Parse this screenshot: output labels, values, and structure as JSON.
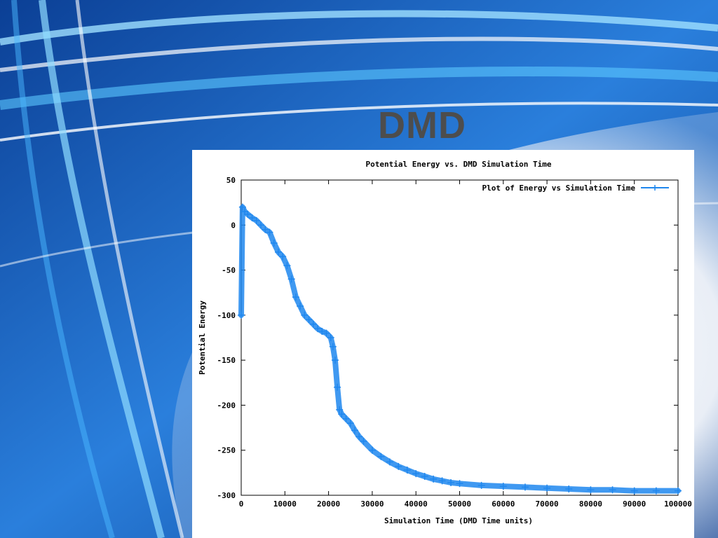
{
  "slide": {
    "title": "DMD"
  },
  "colors": {
    "series": "#1f87ee",
    "title_text": "#4d4d4d"
  },
  "chart_data": {
    "type": "scatter",
    "title": "Potential Energy vs. DMD Simulation Time",
    "xlabel": "Simulation Time (DMD Time units)",
    "ylabel": "Potential Energy",
    "xlim": [
      0,
      100000
    ],
    "ylim": [
      -300,
      50
    ],
    "xticks": [
      "0",
      "10000",
      "20000",
      "30000",
      "40000",
      "50000",
      "60000",
      "70000",
      "80000",
      "90000",
      "100000"
    ],
    "yticks": [
      "50",
      "0",
      "-50",
      "-100",
      "-150",
      "-200",
      "-250",
      "-300"
    ],
    "legend": {
      "position": "top-right"
    },
    "grid": false,
    "series": [
      {
        "name": "Plot of Energy vs Simulation Time",
        "style": "line-plus-markers",
        "x": [
          0,
          300,
          800,
          1500,
          2500,
          3500,
          4500,
          5500,
          6500,
          7500,
          8500,
          9500,
          10500,
          11500,
          12500,
          13500,
          14500,
          15500,
          16500,
          17500,
          18500,
          19500,
          20500,
          21000,
          21500,
          22000,
          22500,
          23000,
          24000,
          25000,
          26000,
          27000,
          28000,
          30000,
          32000,
          34000,
          36000,
          38000,
          40000,
          42000,
          44000,
          46000,
          48000,
          50000,
          55000,
          60000,
          65000,
          70000,
          75000,
          80000,
          85000,
          90000,
          95000,
          100000
        ],
        "y": [
          -100,
          20,
          15,
          12,
          8,
          5,
          0,
          -5,
          -8,
          -20,
          -30,
          -35,
          -45,
          -60,
          -80,
          -90,
          -100,
          -105,
          -110,
          -115,
          -118,
          -120,
          -125,
          -135,
          -150,
          -180,
          -205,
          -210,
          -215,
          -220,
          -228,
          -235,
          -240,
          -250,
          -257,
          -263,
          -268,
          -272,
          -276,
          -279,
          -282,
          -284,
          -286,
          -287,
          -289,
          -290,
          -291,
          -292,
          -293,
          -294,
          -294,
          -295,
          -295,
          -295
        ]
      }
    ]
  }
}
